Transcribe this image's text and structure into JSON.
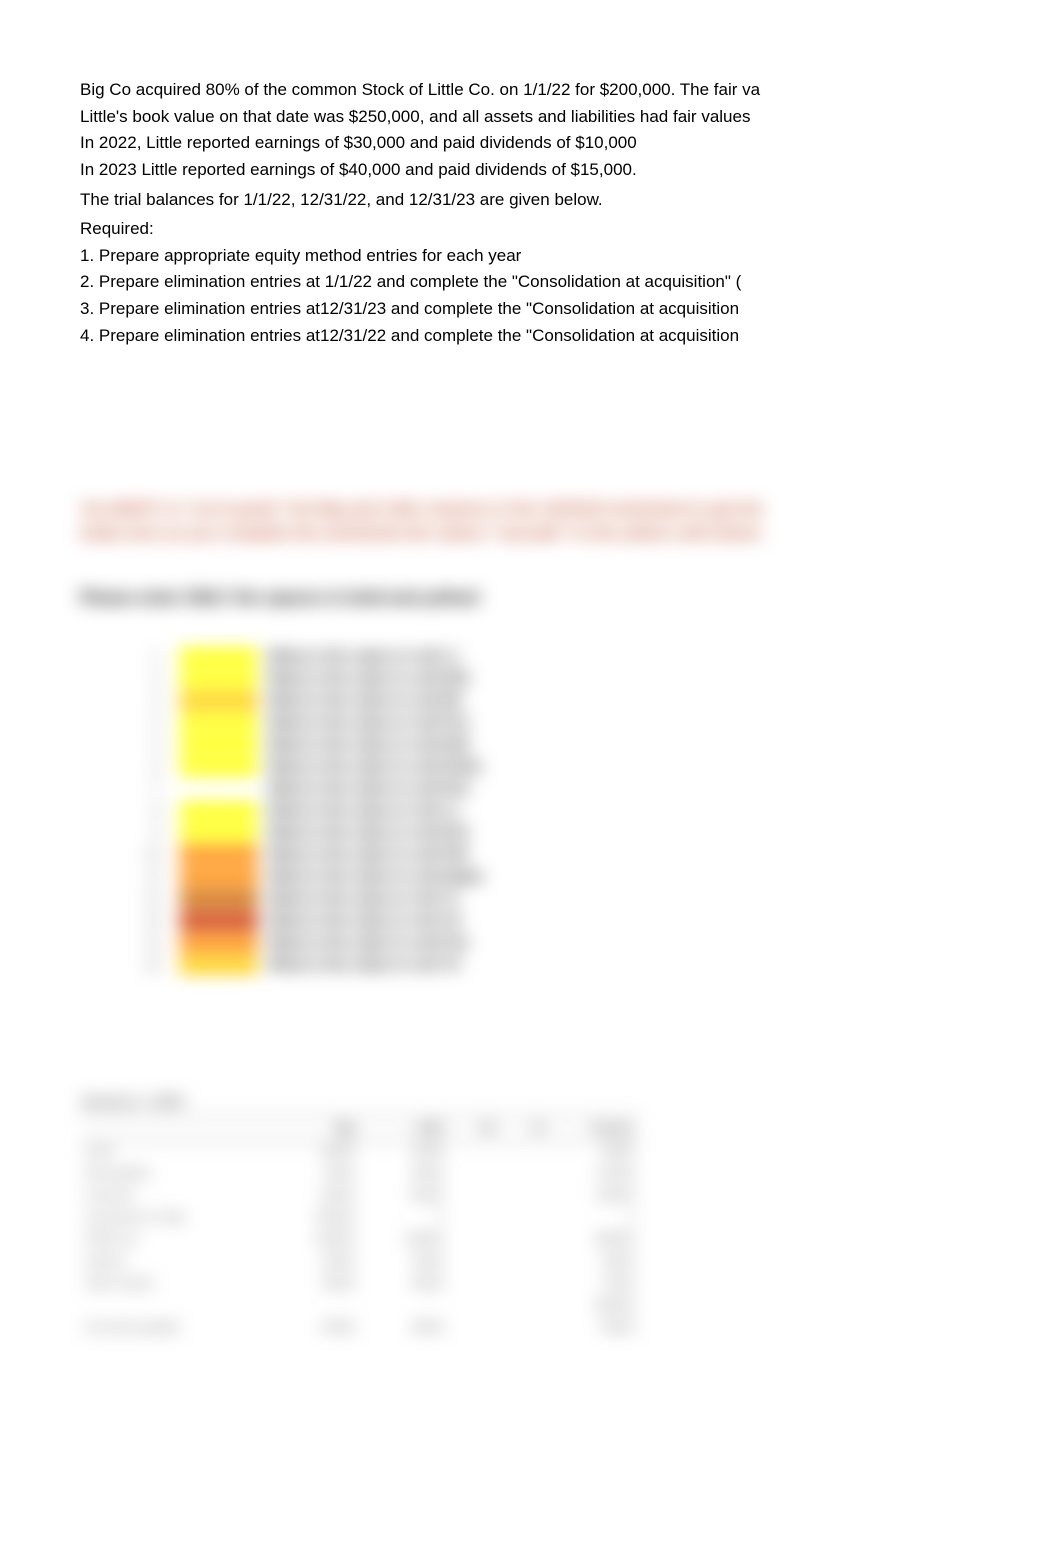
{
  "problem": {
    "line1": "Big Co acquired 80% of the common Stock of Little Co. on 1/1/22 for $200,000. The fair va",
    "line2": " Little's book value on that date was $250,000, and all assets and liabilities had fair values",
    "line3": "In 2022, Little reported earnings of $30,000 and paid dividends of $10,000",
    "line4": "In 2023 Little reported earnings of $40,000 and paid dividends of $15,000.",
    "line5": "The trial balances for 1/1/22, 12/31/22, and 12/31/23 are given below.",
    "line6": "Required:",
    "req1": "1. Prepare appropriate equity method entries for each year",
    "req2": "2. Prepare elimination entries at 1/1/22 and complete the \"Consolidation at acquisition\" (",
    "req3": "3. Prepare elimination entries at12/31/23 and complete the \"Consolidation at acquisition",
    "req4": "4. Prepare elimination entries at12/31/22 and complete the \"Consolidation at acquisition"
  },
  "blurred": {
    "hint1": "You MUST re-\"cut & paste\" the Big and Little columns in the 12/31/22 worksheet to get the",
    "hint2": "totals here as you complete the worksheet the values \"cascade\" to the yellow cells below.",
    "instruction": "Please enter ONLY the spaces in bold and yellow!",
    "colorkey": {
      "rows": [
        {
          "n": "1",
          "color": "#ffff00",
          "label": "What is the value in cell L1"
        },
        {
          "n": "2",
          "color": "#ffff00",
          "label": "What is the value in cell D25"
        },
        {
          "n": "3",
          "color": "#ffcc00",
          "label": "What is the value in cell D8"
        },
        {
          "n": "4",
          "color": "#ffff00",
          "label": "What is the value in cell P12"
        },
        {
          "n": "5",
          "color": "#ffff00",
          "label": "What is the value in cell D40"
        },
        {
          "n": "6",
          "color": "#ffff00",
          "label": "What is the value in cell D1bis"
        },
        {
          "n": "7",
          "color": "#ffffff",
          "label": "What is the value in cell D12"
        },
        {
          "n": "8",
          "color": "#ffff00",
          "label": "What is the value in cell L1"
        },
        {
          "n": "9",
          "color": "#ffff00",
          "label": "What is the value in cell D12"
        },
        {
          "n": "10",
          "color": "#ff8800",
          "label": "What is the value in cell P42"
        },
        {
          "n": "11",
          "color": "#ff8800",
          "label": "What is the value in cell D4par"
        },
        {
          "n": "12",
          "color": "#cc6600",
          "label": "What is the value in cell T1"
        },
        {
          "n": "13",
          "color": "#cc3300",
          "label": "What is the value in cell Y8"
        },
        {
          "n": "14",
          "color": "#ff8800",
          "label": "What is the value in cell P12"
        },
        {
          "n": "15",
          "color": "#ffcc00",
          "label": "What is the value in cell Y5"
        }
      ]
    },
    "trial_balance": {
      "title": "January 1, 2022",
      "headers": [
        "",
        "Big",
        "Little",
        "Dr",
        "Cr",
        "Consol."
      ],
      "rows": [
        {
          "label": "Cash",
          "big": "50000",
          "little": "10000",
          "consol": "60000"
        },
        {
          "label": "Receivables",
          "big": "75000",
          "little": "40000",
          "consol": "115000"
        },
        {
          "label": "Inventory",
          "big": "80000",
          "little": "50000",
          "consol": "130000"
        },
        {
          "label": "Investment in Little",
          "big": "200000",
          "little": "0",
          "consol": "0"
        },
        {
          "label": "PP&E net",
          "big": "400000",
          "little": "180000",
          "consol": "580000"
        },
        {
          "label": "Patents",
          "big": "25000",
          "little": "10000",
          "consol": "35000"
        },
        {
          "label": "Other Assets",
          "big": "30000",
          "little": "40000",
          "consol": "70000"
        },
        {
          "label": "",
          "big": "",
          "little": "",
          "consol": "990000"
        },
        {
          "label": "Accounts payable",
          "big": "50000",
          "little": "30000",
          "consol": "80000"
        }
      ]
    }
  },
  "styles": {
    "background_color": "#ffffff",
    "text_color": "#000000",
    "blur_amount": 9,
    "highlight_yellow": "#ffff00",
    "highlight_orange": "#ff8800",
    "highlight_gold": "#ffcc00"
  }
}
